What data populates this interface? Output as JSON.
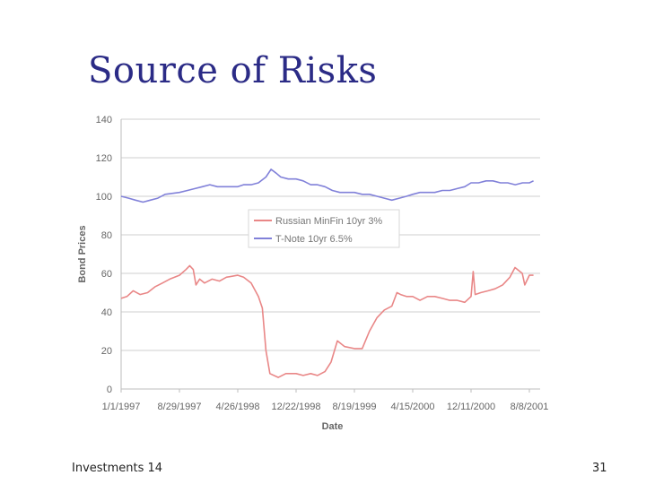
{
  "slide": {
    "title": "Source of Risks",
    "footer_left": "Investments 14",
    "page_number": "31"
  },
  "chart_data": {
    "type": "line",
    "xlabel": "Date",
    "ylabel": "Bond Prices",
    "ylim": [
      0,
      140
    ],
    "yticks": [
      0,
      20,
      40,
      60,
      80,
      100,
      120,
      140
    ],
    "x_tick_labels": [
      "1/1/1997",
      "8/29/1997",
      "4/26/1998",
      "12/22/1998",
      "8/19/1999",
      "4/15/2000",
      "12/11/2000",
      "8/8/2001"
    ],
    "x_tick_dates": [
      "1997-01-01",
      "1997-08-29",
      "1998-04-26",
      "1998-12-22",
      "1999-08-19",
      "2000-04-15",
      "2000-12-11",
      "2001-08-08"
    ],
    "grid": "horizontal",
    "legend_position": "center",
    "series": [
      {
        "name": "Russian MinFin 10yr 3%",
        "color": "#e98787",
        "points": [
          [
            "1997-01-01",
            47
          ],
          [
            "1997-01-25",
            48
          ],
          [
            "1997-02-20",
            51
          ],
          [
            "1997-03-20",
            49
          ],
          [
            "1997-04-20",
            50
          ],
          [
            "1997-05-20",
            53
          ],
          [
            "1997-06-20",
            55
          ],
          [
            "1997-07-20",
            57
          ],
          [
            "1997-08-29",
            59
          ],
          [
            "1997-09-25",
            62
          ],
          [
            "1997-10-10",
            64
          ],
          [
            "1997-10-25",
            62
          ],
          [
            "1997-11-05",
            54
          ],
          [
            "1997-11-20",
            57
          ],
          [
            "1997-12-10",
            55
          ],
          [
            "1998-01-10",
            57
          ],
          [
            "1998-02-10",
            56
          ],
          [
            "1998-03-10",
            58
          ],
          [
            "1998-04-26",
            59
          ],
          [
            "1998-05-20",
            58
          ],
          [
            "1998-06-20",
            55
          ],
          [
            "1998-07-20",
            48
          ],
          [
            "1998-08-05",
            42
          ],
          [
            "1998-08-20",
            20
          ],
          [
            "1998-09-05",
            8
          ],
          [
            "1998-10-10",
            6
          ],
          [
            "1998-11-10",
            8
          ],
          [
            "1998-12-22",
            8
          ],
          [
            "1999-01-20",
            7
          ],
          [
            "1999-02-20",
            8
          ],
          [
            "1999-03-20",
            7
          ],
          [
            "1999-04-20",
            9
          ],
          [
            "1999-05-15",
            14
          ],
          [
            "1999-06-10",
            25
          ],
          [
            "1999-07-10",
            22
          ],
          [
            "1999-08-19",
            21
          ],
          [
            "1999-09-20",
            21
          ],
          [
            "1999-10-20",
            30
          ],
          [
            "1999-11-20",
            37
          ],
          [
            "1999-12-20",
            41
          ],
          [
            "2000-01-20",
            43
          ],
          [
            "2000-02-10",
            50
          ],
          [
            "2000-02-25",
            49
          ],
          [
            "2000-03-20",
            48
          ],
          [
            "2000-04-15",
            48
          ],
          [
            "2000-05-15",
            46
          ],
          [
            "2000-06-15",
            48
          ],
          [
            "2000-07-15",
            48
          ],
          [
            "2000-08-15",
            47
          ],
          [
            "2000-09-15",
            46
          ],
          [
            "2000-10-15",
            46
          ],
          [
            "2000-11-15",
            45
          ],
          [
            "2000-12-11",
            48
          ],
          [
            "2000-12-20",
            61
          ],
          [
            "2000-12-28",
            49
          ],
          [
            "2001-01-20",
            50
          ],
          [
            "2001-02-20",
            51
          ],
          [
            "2001-03-20",
            52
          ],
          [
            "2001-04-20",
            54
          ],
          [
            "2001-05-20",
            58
          ],
          [
            "2001-06-10",
            63
          ],
          [
            "2001-07-10",
            60
          ],
          [
            "2001-07-20",
            54
          ],
          [
            "2001-08-08",
            59
          ],
          [
            "2001-08-25",
            59
          ]
        ]
      },
      {
        "name": "T-Note 10yr 6.5%",
        "color": "#8181d9",
        "points": [
          [
            "1997-01-01",
            100
          ],
          [
            "1997-02-01",
            99
          ],
          [
            "1997-03-01",
            98
          ],
          [
            "1997-04-01",
            97
          ],
          [
            "1997-05-01",
            98
          ],
          [
            "1997-06-01",
            99
          ],
          [
            "1997-07-01",
            101
          ],
          [
            "1997-08-29",
            102
          ],
          [
            "1997-10-01",
            103
          ],
          [
            "1997-11-01",
            104
          ],
          [
            "1997-12-01",
            105
          ],
          [
            "1998-01-01",
            106
          ],
          [
            "1998-02-01",
            105
          ],
          [
            "1998-03-01",
            105
          ],
          [
            "1998-04-26",
            105
          ],
          [
            "1998-05-20",
            106
          ],
          [
            "1998-06-20",
            106
          ],
          [
            "1998-07-20",
            107
          ],
          [
            "1998-08-20",
            110
          ],
          [
            "1998-09-10",
            114
          ],
          [
            "1998-10-01",
            112
          ],
          [
            "1998-10-20",
            110
          ],
          [
            "1998-11-20",
            109
          ],
          [
            "1998-12-22",
            109
          ],
          [
            "1999-01-20",
            108
          ],
          [
            "1999-02-20",
            106
          ],
          [
            "1999-03-20",
            106
          ],
          [
            "1999-04-20",
            105
          ],
          [
            "1999-05-20",
            103
          ],
          [
            "1999-06-20",
            102
          ],
          [
            "1999-08-19",
            102
          ],
          [
            "1999-09-20",
            101
          ],
          [
            "1999-10-20",
            101
          ],
          [
            "1999-11-20",
            100
          ],
          [
            "1999-12-20",
            99
          ],
          [
            "2000-01-20",
            98
          ],
          [
            "2000-02-20",
            99
          ],
          [
            "2000-03-20",
            100
          ],
          [
            "2000-04-15",
            101
          ],
          [
            "2000-05-15",
            102
          ],
          [
            "2000-06-15",
            102
          ],
          [
            "2000-07-15",
            102
          ],
          [
            "2000-08-15",
            103
          ],
          [
            "2000-09-15",
            103
          ],
          [
            "2000-10-15",
            104
          ],
          [
            "2000-11-15",
            105
          ],
          [
            "2000-12-11",
            107
          ],
          [
            "2001-01-11",
            107
          ],
          [
            "2001-02-11",
            108
          ],
          [
            "2001-03-11",
            108
          ],
          [
            "2001-04-11",
            107
          ],
          [
            "2001-05-11",
            107
          ],
          [
            "2001-06-11",
            106
          ],
          [
            "2001-07-11",
            107
          ],
          [
            "2001-08-08",
            107
          ],
          [
            "2001-08-25",
            108
          ]
        ]
      }
    ]
  }
}
